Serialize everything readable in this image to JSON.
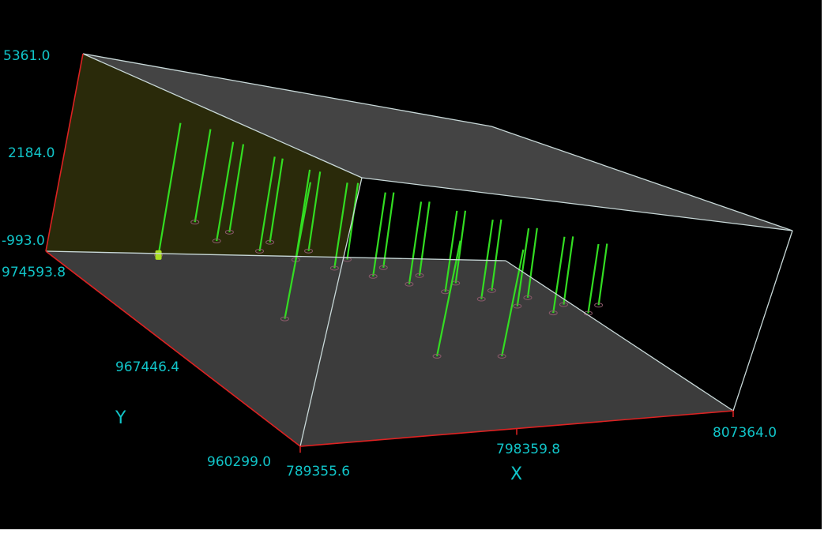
{
  "chart_data": {
    "type": "scatter3d",
    "title": "",
    "xlabel": "X",
    "ylabel": "Y",
    "zlabel": "",
    "xlim": [
      789355.6,
      807364.0
    ],
    "ylim": [
      960299.0,
      974593.8
    ],
    "zlim": [
      -993.0,
      5361.0
    ],
    "x_ticks": [
      "789355.6",
      "798359.8",
      "807364.0"
    ],
    "y_ticks": [
      "960299.0",
      "967446.4",
      "974593.8"
    ],
    "z_ticks": [
      "-993.0",
      "2184.0",
      "5361.0"
    ],
    "grid": false,
    "legend": "none",
    "colors": {
      "background": "#000000",
      "borehole": "#33dd22",
      "axis": "#dd2222",
      "edge": "#c8d8d8",
      "label": "#11c4c8",
      "face_side": "#2a2a0a",
      "face_gray": "#3c3c3c"
    },
    "boreholes_columns": [
      "x",
      "y",
      "z_top",
      "z_bottom"
    ],
    "boreholes": [
      [
        793000,
        972000,
        4100,
        1100
      ],
      [
        793600,
        971500,
        3900,
        700
      ],
      [
        794300,
        971800,
        3800,
        900
      ],
      [
        795000,
        971000,
        3700,
        600
      ],
      [
        795600,
        971300,
        3600,
        800
      ],
      [
        796200,
        970600,
        3500,
        500
      ],
      [
        796900,
        970900,
        3400,
        700
      ],
      [
        797500,
        970200,
        3300,
        400
      ],
      [
        798200,
        970500,
        3250,
        600
      ],
      [
        798800,
        969800,
        3200,
        300
      ],
      [
        799400,
        970100,
        3150,
        500
      ],
      [
        800000,
        969400,
        3100,
        200
      ],
      [
        800600,
        969700,
        3050,
        400
      ],
      [
        801200,
        969000,
        3000,
        100
      ],
      [
        801800,
        969300,
        2950,
        300
      ],
      [
        802400,
        968600,
        2900,
        0
      ],
      [
        803000,
        968900,
        2850,
        200
      ],
      [
        803600,
        968200,
        2800,
        -100
      ],
      [
        804200,
        968500,
        2750,
        100
      ],
      [
        804800,
        967800,
        2700,
        -200
      ],
      [
        805400,
        968100,
        2650,
        0
      ],
      [
        806000,
        967500,
        2600,
        -100
      ],
      [
        806600,
        967800,
        2550,
        100
      ],
      [
        794500,
        968500,
        3600,
        -600
      ],
      [
        799000,
        966000,
        2800,
        -900
      ],
      [
        801500,
        965800,
        2700,
        -900
      ],
      [
        792400,
        972800,
        4000,
        -300
      ]
    ]
  }
}
